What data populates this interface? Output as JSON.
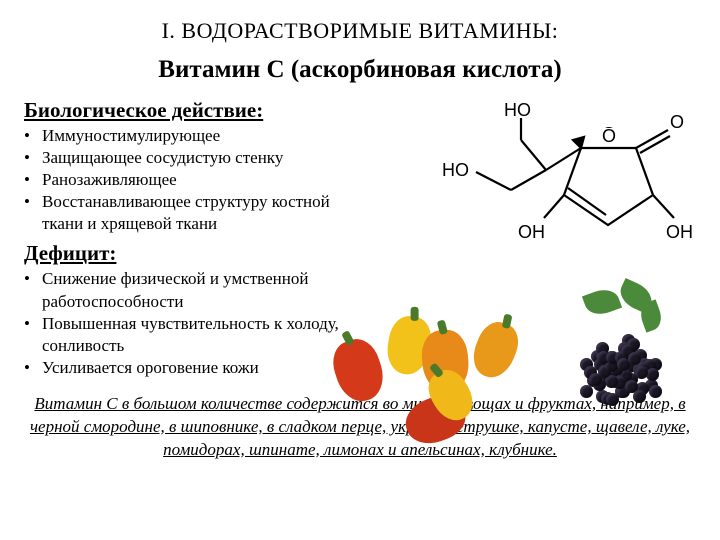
{
  "title": "I. ВОДОРАСТВОРИМЫЕ ВИТАМИНЫ:",
  "subtitle": "Витамин С (аскорбиновая кислота)",
  "section1": {
    "heading": "Биологическое действие:",
    "items": [
      "Иммуностимулирующее",
      "Защищающее сосудистую стенку",
      "Ранозаживляющее",
      "Восстанавливающее структуру костной ткани и хрящевой ткани"
    ]
  },
  "section2": {
    "heading": "Дефицит:",
    "items": [
      "Снижение физической и умственной работоспособности",
      "Повышенная чувствительность к холоду, сонливость",
      "Усиливается ороговение кожи"
    ]
  },
  "footer": "Витамин С в большом количестве содержится во многих овощах и фруктах, например, в черной смородине, в шиповнике, в сладком перце, укропе, петрушке, капусте, щавеле, луке, помидорах, шпинате, лимонах и апельсинах, клубнике.",
  "molecule": {
    "atoms": [
      "HO",
      "HO",
      "O",
      "O",
      "OH",
      "OH"
    ],
    "stroke": "#000000",
    "stroke_width": 2.2,
    "font_size": 18
  },
  "peppers": {
    "colors": [
      "#d43a1a",
      "#f2c21a",
      "#e88a1a",
      "#e8991a",
      "#c83518",
      "#f0b818"
    ],
    "stem_color": "#4a7a2a"
  },
  "berries": {
    "color": "#1a1825",
    "leaf_color": "#4a8a3a",
    "count": 55
  },
  "colors": {
    "bg": "#ffffff",
    "text": "#000000"
  },
  "fonts": {
    "title_size": 22,
    "subtitle_size": 25,
    "heading_size": 21,
    "body_size": 17
  }
}
